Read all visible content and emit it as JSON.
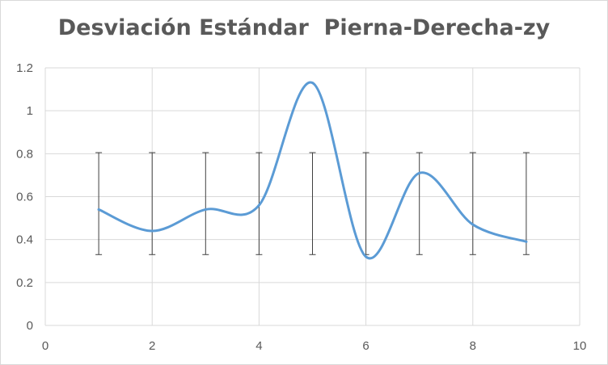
{
  "chart_data": {
    "type": "scatter",
    "title": "Desviación Estándar  Pierna-Derecha-zy",
    "xlabel": "",
    "ylabel": "",
    "xlim": [
      0,
      10
    ],
    "ylim": [
      0,
      1.2
    ],
    "x_ticks": [
      "0",
      "2",
      "4",
      "6",
      "8",
      "10"
    ],
    "y_ticks": [
      "0",
      "0.2",
      "0.4",
      "0.6",
      "0.8",
      "1",
      "1.2"
    ],
    "grid": true,
    "line_style": "smooth",
    "series": [
      {
        "x": [
          1,
          2,
          3,
          4,
          5,
          6,
          7,
          8,
          9
        ],
        "y": [
          0.54,
          0.44,
          0.54,
          0.56,
          1.13,
          0.32,
          0.71,
          0.47,
          0.39
        ],
        "color": "#5b9bd5",
        "error_bars": {
          "lower": [
            0.33,
            0.33,
            0.33,
            0.33,
            0.33,
            0.33,
            0.33,
            0.33,
            0.33
          ],
          "upper": [
            0.805,
            0.805,
            0.805,
            0.805,
            0.805,
            0.805,
            0.805,
            0.805,
            0.805
          ],
          "color": "#404040"
        }
      }
    ],
    "gridline_color": "#d9d9d9",
    "text_color": "#595959"
  }
}
